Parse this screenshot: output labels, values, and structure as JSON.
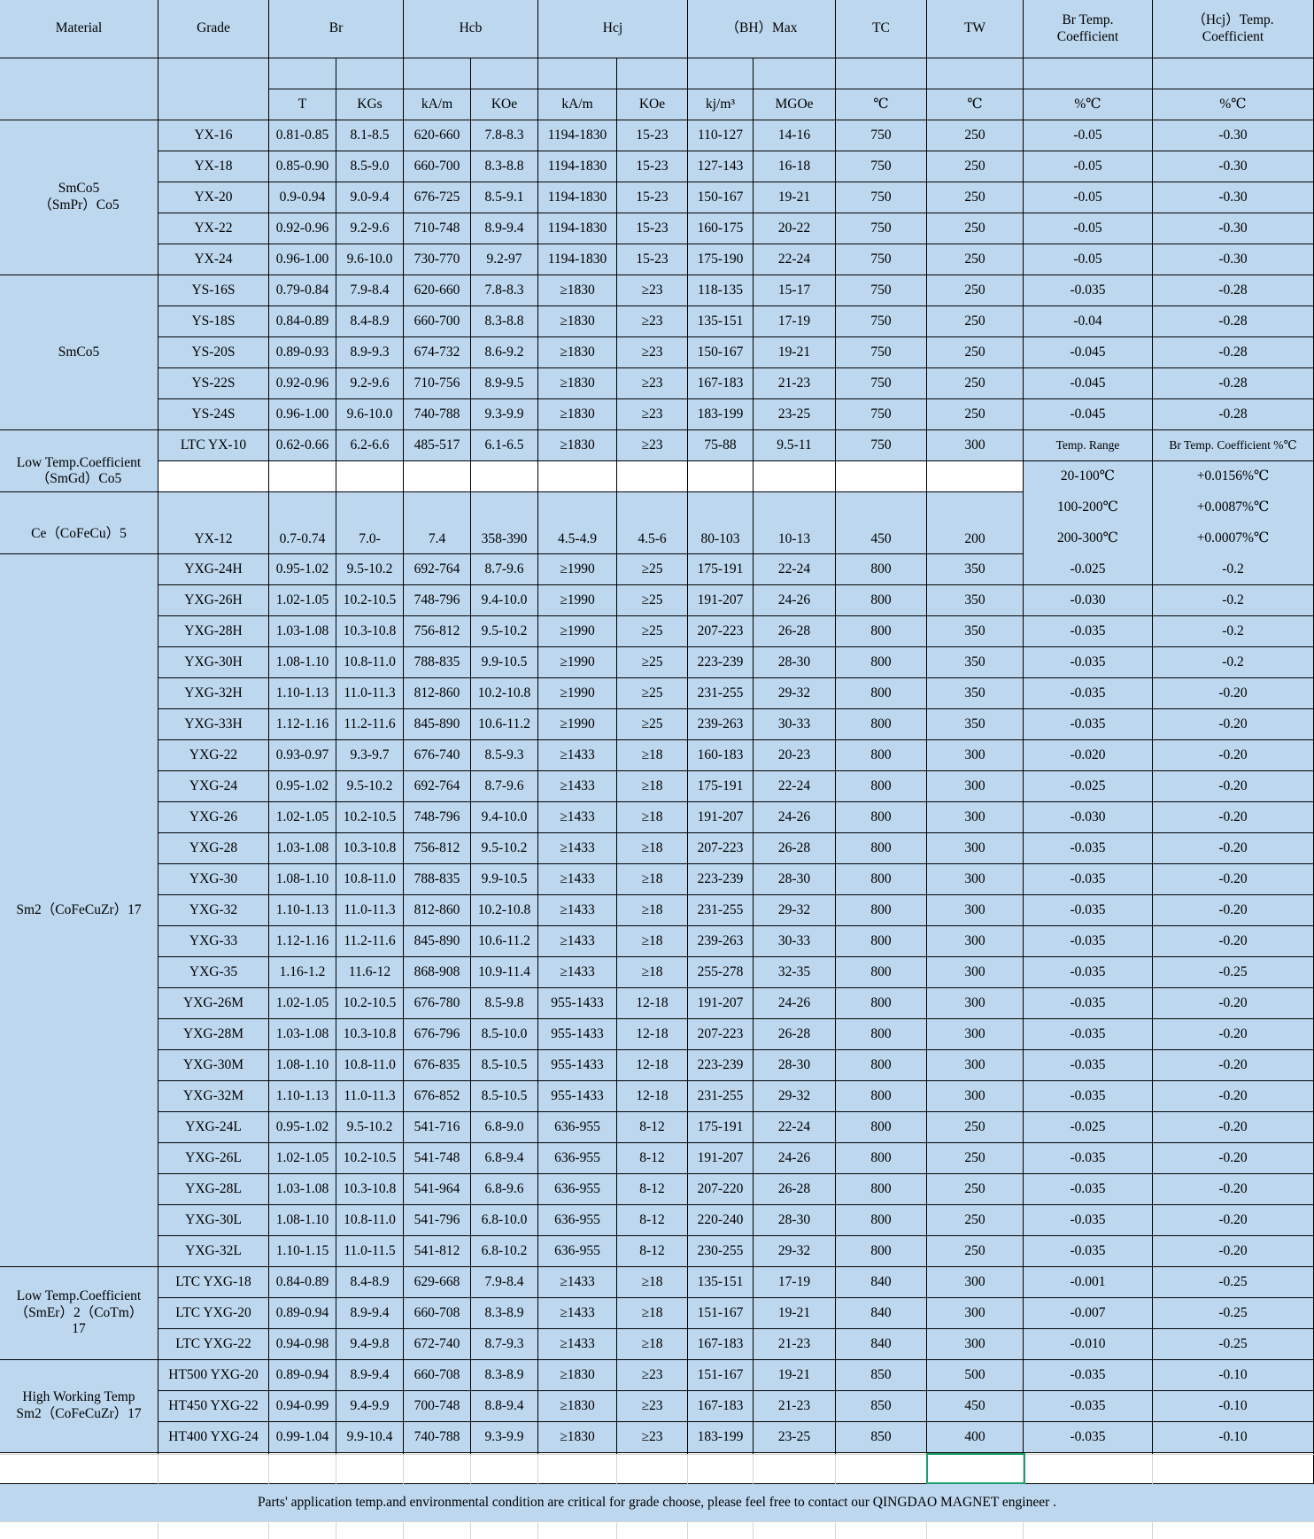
{
  "headers": {
    "material": "Material",
    "grade": "Grade",
    "br": "Br",
    "hcb": "Hcb",
    "hcj": "Hcj",
    "bhmax": "（BH）Max",
    "tc": "TC",
    "tw": "TW",
    "br_temp": "Br Temp.\nCoefficient",
    "hcj_temp": "（Hcj）Temp.\nCoefficient"
  },
  "units": [
    "T",
    "KGs",
    "kA/m",
    "KOe",
    "kA/m",
    "KOe",
    "kj/m³",
    "MGOe",
    "℃",
    "℃",
    "%℃",
    "%℃"
  ],
  "groups": [
    {
      "label": "SmCo5\n（SmPr）Co5",
      "rows": [
        [
          "YX-16",
          "0.81-0.85",
          "8.1-8.5",
          "620-660",
          "7.8-8.3",
          "1194-1830",
          "15-23",
          "110-127",
          "14-16",
          "750",
          "250",
          "-0.05",
          "-0.30"
        ],
        [
          "YX-18",
          "0.85-0.90",
          "8.5-9.0",
          "660-700",
          "8.3-8.8",
          "1194-1830",
          "15-23",
          "127-143",
          "16-18",
          "750",
          "250",
          "-0.05",
          "-0.30"
        ],
        [
          "YX-20",
          "0.9-0.94",
          "9.0-9.4",
          "676-725",
          "8.5-9.1",
          "1194-1830",
          "15-23",
          "150-167",
          "19-21",
          "750",
          "250",
          "-0.05",
          "-0.30"
        ],
        [
          "YX-22",
          "0.92-0.96",
          "9.2-9.6",
          "710-748",
          "8.9-9.4",
          "1194-1830",
          "15-23",
          "160-175",
          "20-22",
          "750",
          "250",
          "-0.05",
          "-0.30"
        ],
        [
          "YX-24",
          "0.96-1.00",
          "9.6-10.0",
          "730-770",
          "9.2-97",
          "1194-1830",
          "15-23",
          "175-190",
          "22-24",
          "750",
          "250",
          "-0.05",
          "-0.30"
        ]
      ]
    },
    {
      "label": "SmCo5",
      "rows": [
        [
          "YS-16S",
          "0.79-0.84",
          "7.9-8.4",
          "620-660",
          "7.8-8.3",
          "≥1830",
          "≥23",
          "118-135",
          "15-17",
          "750",
          "250",
          "-0.035",
          "-0.28"
        ],
        [
          "YS-18S",
          "0.84-0.89",
          "8.4-8.9",
          "660-700",
          "8.3-8.8",
          "≥1830",
          "≥23",
          "135-151",
          "17-19",
          "750",
          "250",
          "-0.04",
          "-0.28"
        ],
        [
          "YS-20S",
          "0.89-0.93",
          "8.9-9.3",
          "674-732",
          "8.6-9.2",
          "≥1830",
          "≥23",
          "150-167",
          "19-21",
          "750",
          "250",
          "-0.045",
          "-0.28"
        ],
        [
          "YS-22S",
          "0.92-0.96",
          "9.2-9.6",
          "710-756",
          "8.9-9.5",
          "≥1830",
          "≥23",
          "167-183",
          "21-23",
          "750",
          "250",
          "-0.045",
          "-0.28"
        ],
        [
          "YS-24S",
          "0.96-1.00",
          "9.6-10.0",
          "740-788",
          "9.3-9.9",
          "≥1830",
          "≥23",
          "183-199",
          "23-25",
          "750",
          "250",
          "-0.045",
          "-0.28"
        ]
      ]
    },
    {
      "label": "Low Temp.Coefficient\n（SmGd）Co5",
      "rows": [
        [
          "LTC YX-10",
          "0.62-0.66",
          "6.2-6.6",
          "485-517",
          "6.1-6.5",
          "≥1830",
          "≥23",
          "75-88",
          "9.5-11",
          "750",
          "300"
        ]
      ]
    },
    {
      "label": "Ce（CoFeCu）5",
      "rows": [
        [
          "YX-12",
          "0.7-0.74",
          "7.0-",
          "7.4",
          "358-390",
          "4.5-4.9",
          "4.5-6",
          "80-103",
          "10-13",
          "450",
          "200"
        ]
      ]
    },
    {
      "label": "Sm2（CoFeCuZr）17",
      "rows": [
        [
          "YXG-24H",
          "0.95-1.02",
          "9.5-10.2",
          "692-764",
          "8.7-9.6",
          "≥1990",
          "≥25",
          "175-191",
          "22-24",
          "800",
          "350",
          "-0.025",
          "-0.2"
        ],
        [
          "YXG-26H",
          "1.02-1.05",
          "10.2-10.5",
          "748-796",
          "9.4-10.0",
          "≥1990",
          "≥25",
          "191-207",
          "24-26",
          "800",
          "350",
          "-0.030",
          "-0.2"
        ],
        [
          "YXG-28H",
          "1.03-1.08",
          "10.3-10.8",
          "756-812",
          "9.5-10.2",
          "≥1990",
          "≥25",
          "207-223",
          "26-28",
          "800",
          "350",
          "-0.035",
          "-0.2"
        ],
        [
          "YXG-30H",
          "1.08-1.10",
          "10.8-11.0",
          "788-835",
          "9.9-10.5",
          "≥1990",
          "≥25",
          "223-239",
          "28-30",
          "800",
          "350",
          "-0.035",
          "-0.2"
        ],
        [
          "YXG-32H",
          "1.10-1.13",
          "11.0-11.3",
          "812-860",
          "10.2-10.8",
          "≥1990",
          "≥25",
          "231-255",
          "29-32",
          "800",
          "350",
          "-0.035",
          "-0.20"
        ],
        [
          "YXG-33H",
          "1.12-1.16",
          "11.2-11.6",
          "845-890",
          "10.6-11.2",
          "≥1990",
          "≥25",
          "239-263",
          "30-33",
          "800",
          "350",
          "-0.035",
          "-0.20"
        ],
        [
          "YXG-22",
          "0.93-0.97",
          "9.3-9.7",
          "676-740",
          "8.5-9.3",
          "≥1433",
          "≥18",
          "160-183",
          "20-23",
          "800",
          "300",
          "-0.020",
          "-0.20"
        ],
        [
          "YXG-24",
          "0.95-1.02",
          "9.5-10.2",
          "692-764",
          "8.7-9.6",
          "≥1433",
          "≥18",
          "175-191",
          "22-24",
          "800",
          "300",
          "-0.025",
          "-0.20"
        ],
        [
          "YXG-26",
          "1.02-1.05",
          "10.2-10.5",
          "748-796",
          "9.4-10.0",
          "≥1433",
          "≥18",
          "191-207",
          "24-26",
          "800",
          "300",
          "-0.030",
          "-0.20"
        ],
        [
          "YXG-28",
          "1.03-1.08",
          "10.3-10.8",
          "756-812",
          "9.5-10.2",
          "≥1433",
          "≥18",
          "207-223",
          "26-28",
          "800",
          "300",
          "-0.035",
          "-0.20"
        ],
        [
          "YXG-30",
          "1.08-1.10",
          "10.8-11.0",
          "788-835",
          "9.9-10.5",
          "≥1433",
          "≥18",
          "223-239",
          "28-30",
          "800",
          "300",
          "-0.035",
          "-0.20"
        ],
        [
          "YXG-32",
          "1.10-1.13",
          "11.0-11.3",
          "812-860",
          "10.2-10.8",
          "≥1433",
          "≥18",
          "231-255",
          "29-32",
          "800",
          "300",
          "-0.035",
          "-0.20"
        ],
        [
          "YXG-33",
          "1.12-1.16",
          "11.2-11.6",
          "845-890",
          "10.6-11.2",
          "≥1433",
          "≥18",
          "239-263",
          "30-33",
          "800",
          "300",
          "-0.035",
          "-0.20"
        ],
        [
          "YXG-35",
          "1.16-1.2",
          "11.6-12",
          "868-908",
          "10.9-11.4",
          "≥1433",
          "≥18",
          "255-278",
          "32-35",
          "800",
          "300",
          "-0.035",
          "-0.25"
        ],
        [
          "YXG-26M",
          "1.02-1.05",
          "10.2-10.5",
          "676-780",
          "8.5-9.8",
          "955-1433",
          "12-18",
          "191-207",
          "24-26",
          "800",
          "300",
          "-0.035",
          "-0.20"
        ],
        [
          "YXG-28M",
          "1.03-1.08",
          "10.3-10.8",
          "676-796",
          "8.5-10.0",
          "955-1433",
          "12-18",
          "207-223",
          "26-28",
          "800",
          "300",
          "-0.035",
          "-0.20"
        ],
        [
          "YXG-30M",
          "1.08-1.10",
          "10.8-11.0",
          "676-835",
          "8.5-10.5",
          "955-1433",
          "12-18",
          "223-239",
          "28-30",
          "800",
          "300",
          "-0.035",
          "-0.20"
        ],
        [
          "YXG-32M",
          "1.10-1.13",
          "11.0-11.3",
          "676-852",
          "8.5-10.5",
          "955-1433",
          "12-18",
          "231-255",
          "29-32",
          "800",
          "300",
          "-0.035",
          "-0.20"
        ],
        [
          "YXG-24L",
          "0.95-1.02",
          "9.5-10.2",
          "541-716",
          "6.8-9.0",
          "636-955",
          "8-12",
          "175-191",
          "22-24",
          "800",
          "250",
          "-0.025",
          "-0.20"
        ],
        [
          "YXG-26L",
          "1.02-1.05",
          "10.2-10.5",
          "541-748",
          "6.8-9.4",
          "636-955",
          "8-12",
          "191-207",
          "24-26",
          "800",
          "250",
          "-0.035",
          "-0.20"
        ],
        [
          "YXG-28L",
          "1.03-1.08",
          "10.3-10.8",
          "541-964",
          "6.8-9.6",
          "636-955",
          "8-12",
          "207-220",
          "26-28",
          "800",
          "250",
          "-0.035",
          "-0.20"
        ],
        [
          "YXG-30L",
          "1.08-1.10",
          "10.8-11.0",
          "541-796",
          "6.8-10.0",
          "636-955",
          "8-12",
          "220-240",
          "28-30",
          "800",
          "250",
          "-0.035",
          "-0.20"
        ],
        [
          "YXG-32L",
          "1.10-1.15",
          "11.0-11.5",
          "541-812",
          "6.8-10.2",
          "636-955",
          "8-12",
          "230-255",
          "29-32",
          "800",
          "250",
          "-0.035",
          "-0.20"
        ]
      ]
    },
    {
      "label": "Low Temp.Coefficient\n（SmEr）2（CoTm）\n17",
      "rows": [
        [
          "LTC YXG-18",
          "0.84-0.89",
          "8.4-8.9",
          "629-668",
          "7.9-8.4",
          "≥1433",
          "≥18",
          "135-151",
          "17-19",
          "840",
          "300",
          "-0.001",
          "-0.25"
        ],
        [
          "LTC YXG-20",
          "0.89-0.94",
          "8.9-9.4",
          "660-708",
          "8.3-8.9",
          "≥1433",
          "≥18",
          "151-167",
          "19-21",
          "840",
          "300",
          "-0.007",
          "-0.25"
        ],
        [
          "LTC YXG-22",
          "0.94-0.98",
          "9.4-9.8",
          "672-740",
          "8.7-9.3",
          "≥1433",
          "≥18",
          "167-183",
          "21-23",
          "840",
          "300",
          "-0.010",
          "-0.25"
        ]
      ]
    },
    {
      "label": "High Working Temp\nSm2（CoFeCuZr）17",
      "rows": [
        [
          "HT500 YXG-20",
          "0.89-0.94",
          "8.9-9.4",
          "660-708",
          "8.3-8.9",
          "≥1830",
          "≥23",
          "151-167",
          "19-21",
          "850",
          "500",
          "-0.035",
          "-0.10"
        ],
        [
          "HT450 YXG-22",
          "0.94-0.99",
          "9.4-9.9",
          "700-748",
          "8.8-9.4",
          "≥1830",
          "≥23",
          "167-183",
          "21-23",
          "850",
          "450",
          "-0.035",
          "-0.10"
        ],
        [
          "HT400 YXG-24",
          "0.99-1.04",
          "9.9-10.4",
          "740-788",
          "9.3-9.9",
          "≥1830",
          "≥23",
          "183-199",
          "23-25",
          "850",
          "400",
          "-0.035",
          "-0.10"
        ]
      ]
    }
  ],
  "ltc_temp_table": {
    "col1_header": "Temp. Range",
    "col2_header": "Br Temp. Coefficient %℃",
    "rows": [
      [
        "20-100℃",
        "+0.0156%℃"
      ],
      [
        "100-200℃",
        "+0.0087%℃"
      ],
      [
        "200-300℃",
        "+0.0007%℃"
      ]
    ]
  },
  "footer": "Parts' application temp.and environmental condition are critical for grade choose, please feel free to contact our QINGDAO MAGNET engineer ."
}
